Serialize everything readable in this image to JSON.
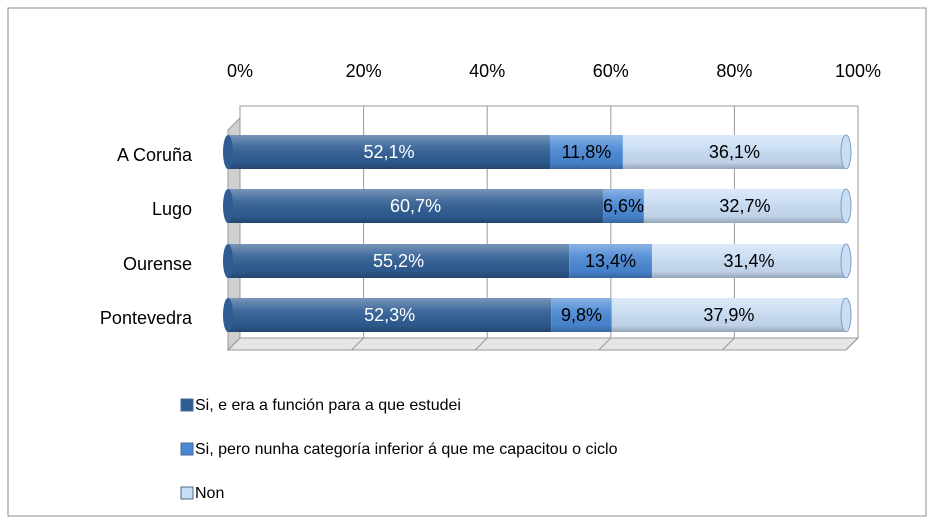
{
  "chart_data": {
    "type": "bar",
    "orientation": "horizontal",
    "stacked": true,
    "categories": [
      "A Coruña",
      "Lugo",
      "Ourense",
      "Pontevedra"
    ],
    "series": [
      {
        "name": "Si, e era a función para a que estudei",
        "color": "#2f5d93",
        "values": [
          52.1,
          60.7,
          55.2,
          52.3
        ],
        "value_labels": [
          "52,1%",
          "60,7%",
          "55,2%",
          "52,3%"
        ]
      },
      {
        "name": "Si, pero nunha categoría inferior á que me capacitou o ciclo",
        "color": "#4a88d4",
        "values": [
          11.8,
          6.6,
          13.4,
          9.8
        ],
        "value_labels": [
          "11,8%",
          "6,6%",
          "13,4%",
          "9,8%"
        ]
      },
      {
        "name": "Non",
        "color": "#c9ddf4",
        "values": [
          36.1,
          32.7,
          31.4,
          37.9
        ],
        "value_labels": [
          "36,1%",
          "32,7%",
          "31,4%",
          "37,9%"
        ]
      }
    ],
    "xlim": [
      0,
      100
    ],
    "xticks": [
      {
        "value": 0,
        "label": "0%"
      },
      {
        "value": 20,
        "label": "20%"
      },
      {
        "value": 40,
        "label": "40%"
      },
      {
        "value": 60,
        "label": "60%"
      },
      {
        "value": 80,
        "label": "80%"
      },
      {
        "value": 100,
        "label": "100%"
      }
    ],
    "grid": true,
    "legend": "bottom"
  }
}
